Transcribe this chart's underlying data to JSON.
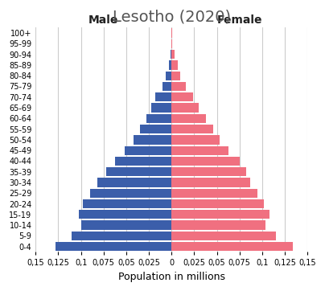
{
  "title": "Lesotho (2020)",
  "xlabel": "Population in millions",
  "male_label": "Male",
  "female_label": "Female",
  "age_groups": [
    "0-4",
    "5-9",
    "10-14",
    "15-19",
    "20-24",
    "25-29",
    "30-34",
    "35-39",
    "40-44",
    "45-49",
    "50-54",
    "55-59",
    "60-64",
    "65-69",
    "70-74",
    "75-79",
    "80-84",
    "85-89",
    "90-94",
    "95-99",
    "100+"
  ],
  "male_values": [
    0.128,
    0.11,
    0.1,
    0.102,
    0.098,
    0.09,
    0.082,
    0.072,
    0.062,
    0.052,
    0.042,
    0.035,
    0.028,
    0.022,
    0.018,
    0.01,
    0.006,
    0.003,
    0.001,
    0.0005,
    0.0002
  ],
  "female_values": [
    0.134,
    0.115,
    0.104,
    0.108,
    0.102,
    0.095,
    0.087,
    0.082,
    0.075,
    0.063,
    0.053,
    0.046,
    0.038,
    0.03,
    0.024,
    0.016,
    0.01,
    0.007,
    0.003,
    0.001,
    0.0003
  ],
  "male_color": "#3B5EAA",
  "female_color": "#F07080",
  "xlim": 0.15,
  "xticks": [
    -0.15,
    -0.125,
    -0.1,
    -0.075,
    -0.05,
    -0.025,
    0,
    0.025,
    0.05,
    0.075,
    0.1,
    0.125,
    0.15
  ],
  "xticklabels": [
    "0,15",
    "0,125",
    "0,1",
    "0,075",
    "0,05",
    "0,025",
    "0",
    "0,025",
    "0,05",
    "0,075",
    "0,1",
    "0,125",
    "0,15"
  ],
  "background_color": "#ffffff",
  "title_fontsize": 14,
  "label_fontsize": 9,
  "tick_fontsize": 7,
  "bar_height": 0.85,
  "grid_color": "#cccccc"
}
